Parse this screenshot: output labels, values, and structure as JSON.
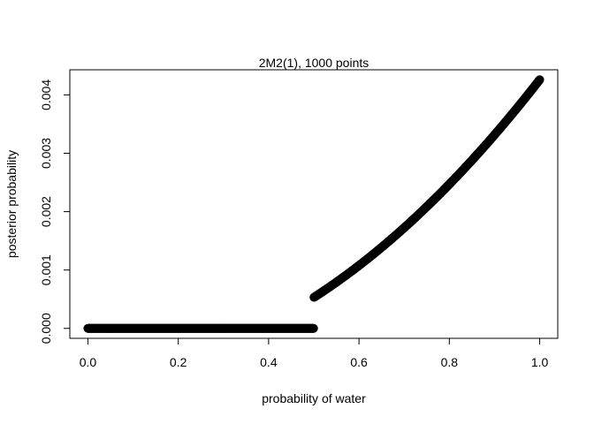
{
  "chart_data": {
    "type": "scatter",
    "title": "2M2(1), 1000 points",
    "xlabel": "probability of water",
    "ylabel": "posterior probability",
    "xlim": [
      -0.04,
      1.04
    ],
    "ylim": [
      -0.00017,
      0.00443
    ],
    "x_ticks": [
      0.0,
      0.2,
      0.4,
      0.6,
      0.8,
      1.0
    ],
    "x_tick_labels": [
      "0.0",
      "0.2",
      "0.4",
      "0.6",
      "0.8",
      "1.0"
    ],
    "y_ticks": [
      0.0,
      0.001,
      0.002,
      0.003,
      0.004
    ],
    "y_tick_labels": [
      "0.000",
      "0.001",
      "0.002",
      "0.003",
      "0.004"
    ],
    "grid": false,
    "legend": "none",
    "point_color": "#000000",
    "series": [
      {
        "points": 1000,
        "x_range": [
          0.0,
          1.0
        ],
        "piecewise": [
          {
            "x_from": 0.0,
            "x_to": 0.5,
            "y": 0.0
          },
          {
            "x_from": 0.5,
            "x_to": 1.0,
            "y_from": 0.00053,
            "y_to": 0.00426,
            "curve": "quadratic"
          }
        ]
      }
    ]
  }
}
